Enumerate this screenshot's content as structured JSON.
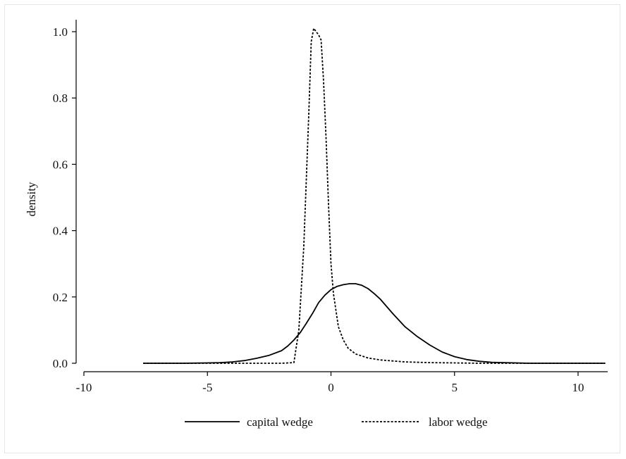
{
  "chart_data": {
    "type": "line",
    "title": "",
    "xlabel": "",
    "ylabel": "density",
    "xlim": [
      -10.3,
      11.3
    ],
    "ylim": [
      0,
      1.05
    ],
    "x_ticks": [
      "-10",
      "-5",
      "0",
      "5",
      "10"
    ],
    "y_ticks": [
      "0.0",
      "0.2",
      "0.4",
      "0.6",
      "0.8",
      "1.0"
    ],
    "grid": false,
    "legend_position": "bottom",
    "series": [
      {
        "name": "capital wedge",
        "style": "solid",
        "color": "#000000",
        "x": [
          -7.6,
          -6.0,
          -5.0,
          -4.5,
          -4.0,
          -3.5,
          -3.0,
          -2.5,
          -2.0,
          -1.75,
          -1.5,
          -1.25,
          -1.0,
          -0.75,
          -0.5,
          -0.25,
          0.0,
          0.25,
          0.5,
          0.75,
          1.0,
          1.25,
          1.5,
          1.75,
          2.0,
          2.5,
          3.0,
          3.5,
          4.0,
          4.5,
          5.0,
          5.5,
          6.0,
          6.5,
          7.0,
          7.5,
          8.0,
          9.0,
          10.0,
          11.1
        ],
        "y": [
          0.0,
          0.0,
          0.001,
          0.002,
          0.004,
          0.008,
          0.015,
          0.024,
          0.038,
          0.052,
          0.07,
          0.092,
          0.12,
          0.15,
          0.183,
          0.205,
          0.222,
          0.232,
          0.237,
          0.24,
          0.24,
          0.235,
          0.225,
          0.21,
          0.193,
          0.15,
          0.11,
          0.08,
          0.055,
          0.034,
          0.02,
          0.011,
          0.006,
          0.003,
          0.002,
          0.001,
          0.0,
          0.0,
          0.0,
          0.0
        ]
      },
      {
        "name": "labor wedge",
        "style": "dotted",
        "color": "#000000",
        "x": [
          -7.6,
          -5.0,
          -3.0,
          -2.0,
          -1.5,
          -1.3,
          -1.1,
          -0.9,
          -0.8,
          -0.7,
          -0.6,
          -0.5,
          -0.4,
          -0.3,
          -0.2,
          -0.1,
          0.0,
          0.1,
          0.2,
          0.3,
          0.5,
          0.7,
          1.0,
          1.5,
          2.0,
          3.0,
          4.0,
          5.0,
          6.0,
          8.0,
          11.1
        ],
        "y": [
          0.0,
          0.0,
          0.0,
          0.0,
          0.002,
          0.1,
          0.35,
          0.75,
          0.97,
          1.01,
          1.0,
          0.99,
          0.975,
          0.85,
          0.68,
          0.48,
          0.3,
          0.21,
          0.16,
          0.11,
          0.07,
          0.045,
          0.028,
          0.016,
          0.01,
          0.004,
          0.002,
          0.001,
          0.0,
          0.0,
          0.0
        ]
      }
    ]
  }
}
